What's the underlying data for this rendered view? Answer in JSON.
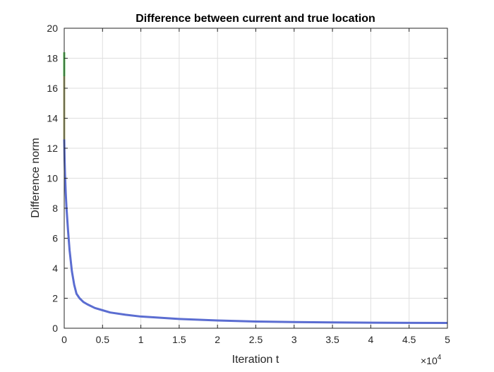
{
  "chart_data": {
    "type": "line",
    "title": "Difference between current and true location",
    "xlabel": "Iteration t",
    "ylabel": "Difference norm",
    "x_exponent_label": {
      "base": "×10",
      "exp": "4"
    },
    "xlim": [
      0,
      50000
    ],
    "ylim": [
      0,
      20
    ],
    "x_ticks": [
      0,
      5000,
      10000,
      15000,
      20000,
      25000,
      30000,
      35000,
      40000,
      45000,
      50000
    ],
    "x_tick_labels": [
      "0",
      "0.5",
      "1",
      "1.5",
      "2",
      "2.5",
      "3",
      "3.5",
      "4",
      "4.5",
      "5"
    ],
    "y_ticks": [
      0,
      2,
      4,
      6,
      8,
      10,
      12,
      14,
      16,
      18,
      20
    ],
    "y_tick_labels": [
      "0",
      "2",
      "4",
      "6",
      "8",
      "10",
      "12",
      "14",
      "16",
      "18",
      "20"
    ],
    "grid": true,
    "series": [
      {
        "color": "#5b6dd1",
        "x": [
          0,
          50,
          100,
          200,
          300,
          500,
          700,
          1000,
          1300,
          1600,
          2000,
          2500,
          3000,
          4000,
          5000,
          6000,
          8000,
          10000,
          12000,
          15000,
          20000,
          25000,
          30000,
          35000,
          40000,
          45000,
          50000
        ],
        "y": [
          12.6,
          11.2,
          10.3,
          9.0,
          8.0,
          6.5,
          5.2,
          3.8,
          2.9,
          2.3,
          2.0,
          1.75,
          1.6,
          1.35,
          1.2,
          1.05,
          0.9,
          0.78,
          0.72,
          0.62,
          0.52,
          0.45,
          0.41,
          0.39,
          0.37,
          0.36,
          0.35
        ]
      },
      {
        "color": "#b3b276",
        "x": [
          0,
          0,
          0
        ],
        "y": [
          12.6,
          14.8,
          16.8
        ]
      },
      {
        "color": "#5ac85a",
        "x": [
          0,
          0
        ],
        "y": [
          16.8,
          18.4
        ]
      }
    ]
  }
}
